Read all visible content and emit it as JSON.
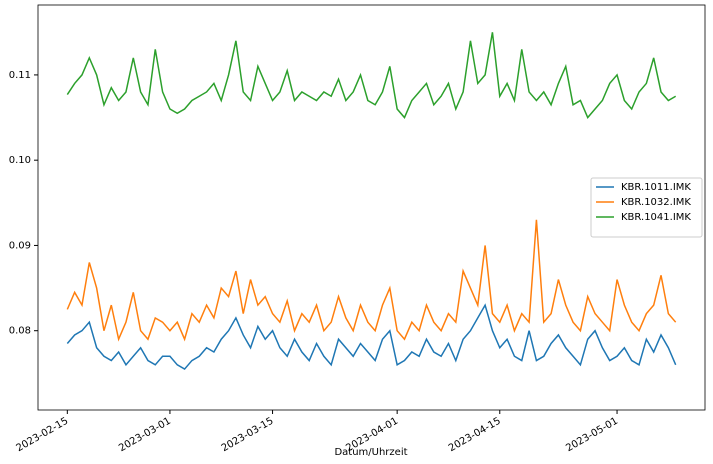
{
  "chart_data": {
    "type": "line",
    "xlabel": "Datum/Uhrzeit",
    "x": [
      "2023-02-15",
      "2023-02-16",
      "2023-02-17",
      "2023-02-18",
      "2023-02-19",
      "2023-02-20",
      "2023-02-21",
      "2023-02-22",
      "2023-02-23",
      "2023-02-24",
      "2023-02-25",
      "2023-02-26",
      "2023-02-27",
      "2023-02-28",
      "2023-03-01",
      "2023-03-02",
      "2023-03-03",
      "2023-03-04",
      "2023-03-05",
      "2023-03-06",
      "2023-03-07",
      "2023-03-08",
      "2023-03-09",
      "2023-03-10",
      "2023-03-11",
      "2023-03-12",
      "2023-03-13",
      "2023-03-14",
      "2023-03-15",
      "2023-03-16",
      "2023-03-17",
      "2023-03-18",
      "2023-03-19",
      "2023-03-20",
      "2023-03-21",
      "2023-03-22",
      "2023-03-23",
      "2023-03-24",
      "2023-03-25",
      "2023-03-26",
      "2023-03-27",
      "2023-03-28",
      "2023-03-29",
      "2023-03-30",
      "2023-03-31",
      "2023-04-01",
      "2023-04-02",
      "2023-04-03",
      "2023-04-04",
      "2023-04-05",
      "2023-04-06",
      "2023-04-07",
      "2023-04-08",
      "2023-04-09",
      "2023-04-10",
      "2023-04-11",
      "2023-04-12",
      "2023-04-13",
      "2023-04-14",
      "2023-04-15",
      "2023-04-16",
      "2023-04-17",
      "2023-04-18",
      "2023-04-19",
      "2023-04-20",
      "2023-04-21",
      "2023-04-22",
      "2023-04-23",
      "2023-04-24",
      "2023-04-25",
      "2023-04-26",
      "2023-04-27",
      "2023-04-28",
      "2023-04-29",
      "2023-04-30",
      "2023-05-01",
      "2023-05-02",
      "2023-05-03",
      "2023-05-04",
      "2023-05-05",
      "2023-05-06",
      "2023-05-07",
      "2023-05-08",
      "2023-05-09"
    ],
    "series": [
      {
        "name": "KBR.1011.IMK",
        "color": "#1f77b4",
        "values": [
          0.0785,
          0.0795,
          0.08,
          0.081,
          0.078,
          0.077,
          0.0765,
          0.0775,
          0.076,
          0.077,
          0.078,
          0.0765,
          0.076,
          0.077,
          0.077,
          0.076,
          0.0755,
          0.0765,
          0.077,
          0.078,
          0.0775,
          0.079,
          0.08,
          0.0815,
          0.0795,
          0.078,
          0.0805,
          0.079,
          0.08,
          0.078,
          0.077,
          0.079,
          0.0775,
          0.0765,
          0.0785,
          0.077,
          0.076,
          0.079,
          0.078,
          0.077,
          0.0785,
          0.0775,
          0.0765,
          0.079,
          0.08,
          0.076,
          0.0765,
          0.0775,
          0.077,
          0.079,
          0.0775,
          0.077,
          0.0785,
          0.0765,
          0.079,
          0.08,
          0.0815,
          0.083,
          0.08,
          0.078,
          0.079,
          0.077,
          0.0765,
          0.08,
          0.0765,
          0.077,
          0.0785,
          0.0795,
          0.078,
          0.077,
          0.076,
          0.079,
          0.08,
          0.078,
          0.0765,
          0.077,
          0.078,
          0.0765,
          0.076,
          0.079,
          0.0775,
          0.0795,
          0.078,
          0.076
        ]
      },
      {
        "name": "KBR.1032.IMK",
        "color": "#ff7f0e",
        "values": [
          0.0825,
          0.0845,
          0.083,
          0.088,
          0.085,
          0.08,
          0.083,
          0.079,
          0.081,
          0.0845,
          0.08,
          0.079,
          0.0815,
          0.081,
          0.08,
          0.081,
          0.079,
          0.082,
          0.081,
          0.083,
          0.0815,
          0.085,
          0.084,
          0.087,
          0.082,
          0.086,
          0.083,
          0.084,
          0.082,
          0.081,
          0.0835,
          0.08,
          0.082,
          0.081,
          0.083,
          0.08,
          0.081,
          0.084,
          0.0815,
          0.08,
          0.083,
          0.081,
          0.08,
          0.083,
          0.085,
          0.08,
          0.079,
          0.081,
          0.08,
          0.083,
          0.081,
          0.08,
          0.082,
          0.081,
          0.087,
          0.085,
          0.083,
          0.09,
          0.082,
          0.081,
          0.083,
          0.08,
          0.082,
          0.081,
          0.093,
          0.081,
          0.082,
          0.086,
          0.083,
          0.081,
          0.08,
          0.084,
          0.082,
          0.081,
          0.08,
          0.086,
          0.083,
          0.081,
          0.08,
          0.082,
          0.083,
          0.0865,
          0.082,
          0.081
        ]
      },
      {
        "name": "KBR.1041.IMK",
        "color": "#2ca02c",
        "values": [
          0.1077,
          0.109,
          0.11,
          0.112,
          0.11,
          0.1065,
          0.1085,
          0.107,
          0.108,
          0.112,
          0.108,
          0.1065,
          0.113,
          0.108,
          0.106,
          0.1055,
          0.106,
          0.107,
          0.1075,
          0.108,
          0.109,
          0.107,
          0.11,
          0.114,
          0.108,
          0.107,
          0.111,
          0.109,
          0.107,
          0.108,
          0.1105,
          0.107,
          0.108,
          0.1075,
          0.107,
          0.108,
          0.1075,
          0.1095,
          0.107,
          0.108,
          0.11,
          0.107,
          0.1065,
          0.108,
          0.111,
          0.106,
          0.105,
          0.107,
          0.108,
          0.109,
          0.1065,
          0.1075,
          0.109,
          0.106,
          0.108,
          0.114,
          0.109,
          0.11,
          0.115,
          0.1075,
          0.109,
          0.107,
          0.113,
          0.108,
          0.107,
          0.108,
          0.1065,
          0.109,
          0.111,
          0.1065,
          0.107,
          0.105,
          0.106,
          0.107,
          0.109,
          0.11,
          0.107,
          0.106,
          0.108,
          0.109,
          0.112,
          0.108,
          0.107,
          0.1075
        ]
      }
    ],
    "xlim": [
      "2023-02-11",
      "2023-05-13"
    ],
    "xticks": [
      "2023-02-15",
      "2023-03-01",
      "2023-03-15",
      "2023-04-01",
      "2023-04-15",
      "2023-05-01"
    ],
    "ylim": [
      0.0707,
      0.1182
    ],
    "yticks": [
      0.08,
      0.09,
      {
        "value": 0.1,
        "label": "0.10"
      },
      0.11
    ],
    "legend": "center right"
  }
}
